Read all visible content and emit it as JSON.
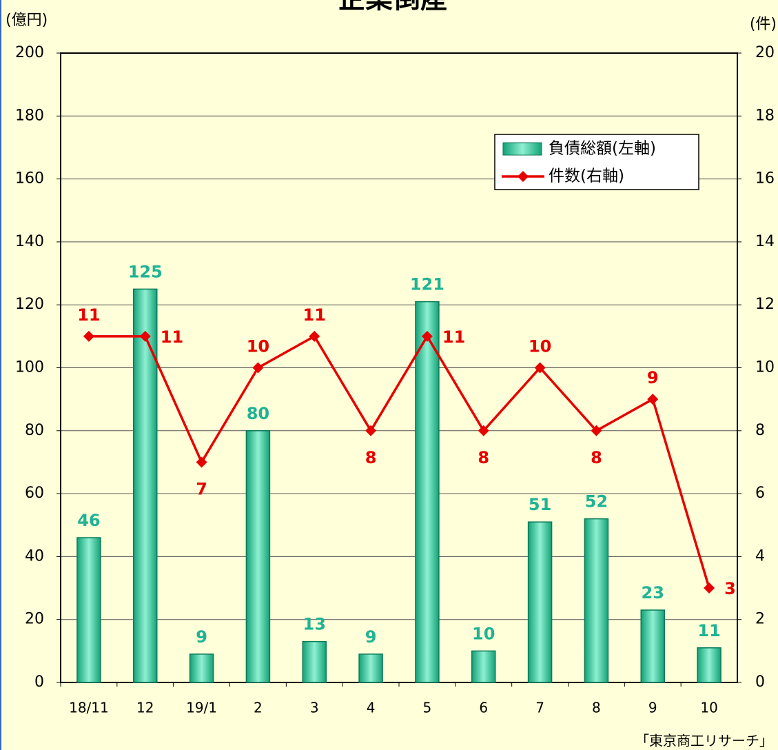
{
  "chart_data": {
    "type": "bar-line",
    "title": "企業倒産",
    "y_label": "(億円)",
    "y2_label": "(件)",
    "source": "「東京商工リサーチ」",
    "categories": [
      "18/11",
      "12",
      "19/1",
      "2",
      "3",
      "4",
      "5",
      "6",
      "7",
      "8",
      "9",
      "10"
    ],
    "series": [
      {
        "name": "負債総額(左軸)",
        "type": "bar",
        "color": "#2ec99a",
        "label_color": "#1fb394",
        "values": [
          46,
          125,
          9,
          80,
          13,
          9,
          121,
          10,
          51,
          52,
          23,
          11
        ]
      },
      {
        "name": "件数(右軸)",
        "type": "line",
        "axis": "y2",
        "color": "#e60000",
        "values": [
          11,
          11,
          7,
          10,
          11,
          8,
          11,
          8,
          10,
          8,
          9,
          3
        ]
      }
    ],
    "ylim": [
      0,
      200
    ],
    "yticks": [
      0,
      20,
      40,
      60,
      80,
      100,
      120,
      140,
      160,
      180,
      200
    ],
    "y2lim": [
      0,
      20
    ],
    "y2ticks": [
      0,
      2,
      4,
      6,
      8,
      10,
      12,
      14,
      16,
      18,
      20
    ],
    "grid": true
  }
}
